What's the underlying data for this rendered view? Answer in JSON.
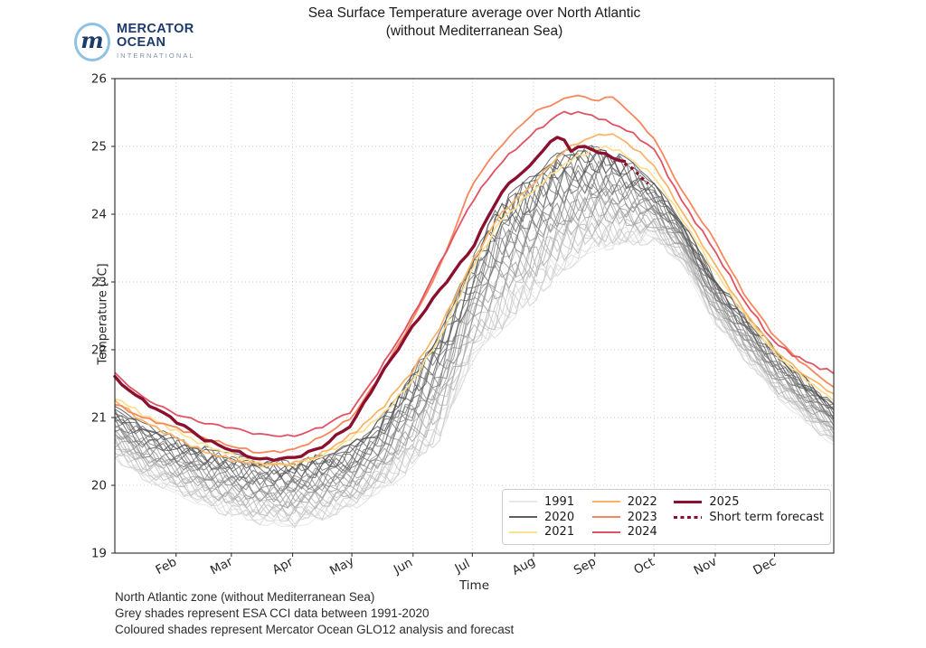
{
  "logo": {
    "mark": "m",
    "line1": "MERCATOR",
    "line2": "OCEAN",
    "line3": "INTERNATIONAL"
  },
  "title": {
    "line1": "Sea Surface Temperature average over North Atlantic",
    "line2": "(without Mediterranean Sea)"
  },
  "footer": {
    "line1": "North Atlantic zone (without Mediterranean Sea)",
    "line2": "Grey shades represent ESA CCI data between 1991-2020",
    "line3": "Coloured shades represent Mercator Ocean GLO12 analysis and forecast"
  },
  "legend": {
    "columns": [
      [
        {
          "label": "1991",
          "color": "#e8e8e8",
          "style": "thin"
        },
        {
          "label": "2020",
          "color": "#5e5e5e",
          "style": "thin"
        },
        {
          "label": "2021",
          "color": "#fcdf8f",
          "style": "thin"
        }
      ],
      [
        {
          "label": "2022",
          "color": "#fbb263",
          "style": "thin"
        },
        {
          "label": "2023",
          "color": "#f8865c",
          "style": "thin"
        },
        {
          "label": "2024",
          "color": "#e05263",
          "style": "thin"
        }
      ],
      [
        {
          "label": "2025",
          "color": "#8b0f2f",
          "style": "thick"
        },
        {
          "label": "Short term forecast",
          "color": "#8b0f2f",
          "style": "dotted"
        }
      ]
    ]
  },
  "chart_data": {
    "type": "line",
    "title": "Sea Surface Temperature average over North Atlantic (without Mediterranean Sea)",
    "xlabel": "Time",
    "ylabel": "Temperature [°C]",
    "ylim": [
      19,
      26
    ],
    "grid": true,
    "legend_position": "lower right",
    "y_ticks": [
      19,
      20,
      21,
      22,
      23,
      24,
      25,
      26
    ],
    "x_ticks": [
      {
        "label": "Feb",
        "day": 32
      },
      {
        "label": "Mar",
        "day": 60
      },
      {
        "label": "Apr",
        "day": 91
      },
      {
        "label": "May",
        "day": 121
      },
      {
        "label": "Jun",
        "day": 152
      },
      {
        "label": "Jul",
        "day": 182
      },
      {
        "label": "Aug",
        "day": 213
      },
      {
        "label": "Sep",
        "day": 244
      },
      {
        "label": "Oct",
        "day": 274
      },
      {
        "label": "Nov",
        "day": 305
      },
      {
        "label": "Dec",
        "day": 335
      }
    ],
    "x_unit": "day_of_year",
    "sample_days": [
      1,
      15,
      32,
      46,
      60,
      74,
      91,
      105,
      121,
      135,
      152,
      166,
      182,
      196,
      213,
      227,
      235,
      244,
      251,
      258,
      265,
      274,
      288,
      305,
      319,
      335,
      349,
      365
    ],
    "series": [
      {
        "name": "2021",
        "color": "#fcdf8f",
        "width": 1.7,
        "values": [
          21.3,
          21.05,
          20.8,
          20.6,
          20.45,
          20.32,
          20.3,
          20.42,
          20.7,
          21.0,
          21.55,
          22.2,
          23.2,
          23.9,
          24.35,
          24.7,
          24.85,
          24.95,
          25.0,
          24.9,
          24.75,
          24.56,
          23.95,
          23.15,
          22.55,
          21.95,
          21.6,
          21.25
        ]
      },
      {
        "name": "2022",
        "color": "#fbb263",
        "width": 1.7,
        "values": [
          21.25,
          20.95,
          20.7,
          20.5,
          20.38,
          20.3,
          20.32,
          20.45,
          20.75,
          21.1,
          21.7,
          22.35,
          23.3,
          24.0,
          24.45,
          24.9,
          25.05,
          25.15,
          25.2,
          25.1,
          24.95,
          24.72,
          24.05,
          23.25,
          22.6,
          22.0,
          21.65,
          21.35
        ]
      },
      {
        "name": "2023",
        "color": "#f8865c",
        "width": 1.8,
        "values": [
          21.2,
          21.0,
          20.85,
          20.7,
          20.58,
          20.48,
          20.52,
          20.7,
          21.0,
          21.6,
          22.45,
          23.25,
          24.45,
          25.0,
          25.5,
          25.68,
          25.77,
          25.66,
          25.75,
          25.62,
          25.4,
          25.12,
          24.35,
          23.6,
          22.85,
          22.2,
          21.8,
          21.45
        ]
      },
      {
        "name": "2024",
        "color": "#e05263",
        "width": 1.8,
        "values": [
          21.65,
          21.3,
          21.05,
          20.92,
          20.85,
          20.75,
          20.72,
          20.85,
          21.1,
          21.7,
          22.5,
          23.3,
          24.2,
          24.75,
          25.2,
          25.5,
          25.5,
          25.45,
          25.35,
          25.28,
          25.15,
          24.96,
          24.2,
          23.45,
          22.75,
          22.1,
          21.85,
          21.65
        ]
      }
    ],
    "series_2025": {
      "name": "2025",
      "color": "#8b0f2f",
      "width": 3.4,
      "days": [
        1,
        15,
        32,
        46,
        60,
        74,
        91,
        105,
        121,
        135,
        152,
        166,
        182,
        196,
        206,
        213,
        220,
        227,
        232,
        238,
        244,
        251,
        259
      ],
      "values": [
        21.58,
        21.25,
        20.95,
        20.68,
        20.52,
        20.38,
        20.4,
        20.55,
        20.9,
        21.6,
        22.35,
        22.9,
        23.5,
        24.3,
        24.6,
        24.75,
        25.05,
        25.15,
        24.95,
        25.0,
        24.95,
        24.85,
        24.78
      ]
    },
    "forecast": {
      "name": "Short term forecast",
      "color": "#8b0f2f",
      "width": 3.4,
      "style": "dotted",
      "days": [
        259,
        262,
        265,
        268,
        271
      ],
      "values": [
        24.75,
        24.7,
        24.62,
        24.53,
        24.45
      ]
    },
    "ensemble": {
      "label": "ESA CCI data between 1991-2020",
      "count": 30,
      "color_from": "#e6e6e6",
      "color_to": "#4d4d4d",
      "envelope_min": [
        20.4,
        20.1,
        19.9,
        19.7,
        19.55,
        19.45,
        19.4,
        19.5,
        19.65,
        19.9,
        20.25,
        20.7,
        21.85,
        22.25,
        22.7,
        23.1,
        23.3,
        23.45,
        23.5,
        23.5,
        23.55,
        23.6,
        23.3,
        22.4,
        21.9,
        21.35,
        21.0,
        20.6
      ],
      "envelope_max": [
        21.15,
        20.9,
        20.7,
        20.55,
        20.45,
        20.35,
        20.35,
        20.45,
        20.6,
        20.95,
        21.7,
        22.3,
        23.35,
        24.2,
        24.6,
        24.95,
        24.97,
        25.0,
        24.95,
        24.85,
        24.7,
        24.45,
        23.9,
        23.05,
        22.55,
        22.0,
        21.6,
        21.2
      ]
    }
  }
}
